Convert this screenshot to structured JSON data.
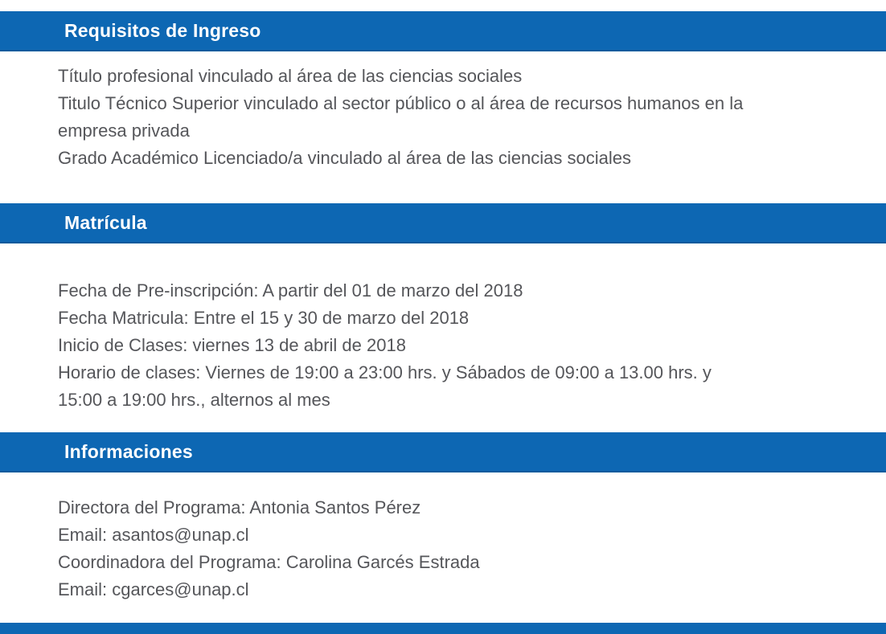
{
  "theme": {
    "header_bg": "#0d67b3",
    "header_border": "#0a5a9c",
    "header_text": "#ffffff",
    "body_text": "#55565a",
    "page_bg": "#ffffff"
  },
  "sections": [
    {
      "title": "Requisitos de Ingreso",
      "lines": [
        "Título profesional vinculado al área de las ciencias sociales",
        "Titulo Técnico Superior vinculado al sector público o al área de recursos humanos en la",
        "empresa privada",
        "Grado Académico Licenciado/a vinculado al área de las ciencias sociales"
      ]
    },
    {
      "title": "Matrícula",
      "lines": [
        "Fecha de Pre-inscripción: A partir del 01 de marzo del 2018",
        "Fecha Matricula: Entre el 15 y 30 de marzo del 2018",
        "Inicio de Clases: viernes 13 de abril de 2018",
        "Horario de clases: Viernes de 19:00 a 23:00 hrs. y Sábados de 09:00 a 13.00 hrs. y",
        "15:00 a 19:00 hrs., alternos al mes"
      ]
    },
    {
      "title": "Informaciones",
      "lines": [
        "Directora del Programa: Antonia Santos Pérez",
        "Email: asantos@unap.cl",
        "Coordinadora del Programa: Carolina Garcés Estrada",
        "Email: cgarces@unap.cl"
      ]
    }
  ],
  "partial_bottom_bar": true
}
